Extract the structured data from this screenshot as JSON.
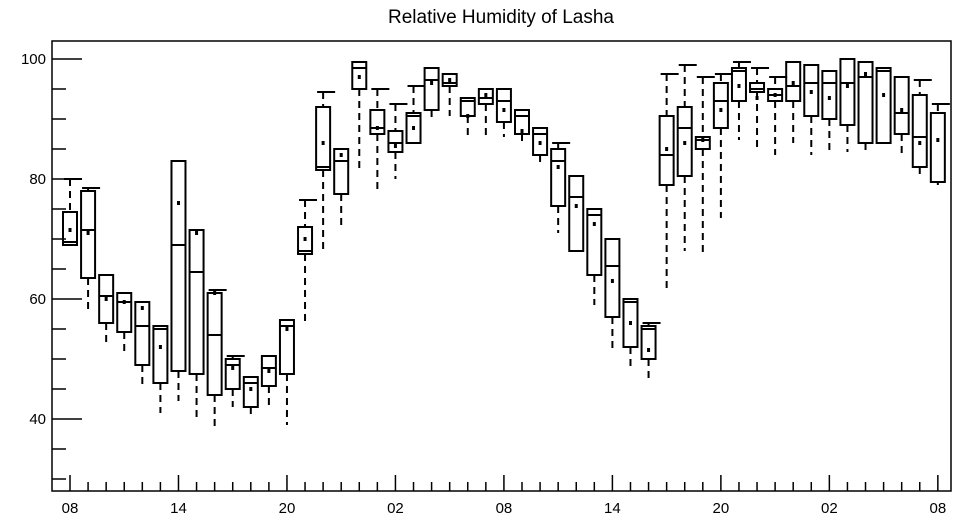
{
  "chart_data": {
    "type": "boxplot",
    "title": "Relative Humidity of Lasha",
    "xlabel": "",
    "ylabel": "",
    "ylim": [
      28,
      103
    ],
    "yticks": [
      40,
      60,
      80,
      100
    ],
    "y_minor_step": 5,
    "x_tick_labels": [
      "08",
      "14",
      "20",
      "02",
      "08",
      "14",
      "20",
      "02",
      "08"
    ],
    "x_tick_hours": [
      0,
      6,
      12,
      18,
      24,
      30,
      36,
      42,
      48
    ],
    "series": [
      {
        "hour": 0,
        "q1": 69.0,
        "median": 69.5,
        "q3": 74.5,
        "min": 69.0,
        "max": 80.0,
        "mean": 71.5
      },
      {
        "hour": 1,
        "q1": 63.5,
        "median": 71.5,
        "q3": 78.0,
        "min": 57.5,
        "max": 78.5,
        "mean": 71.0
      },
      {
        "hour": 2,
        "q1": 56.0,
        "median": 60.5,
        "q3": 64.0,
        "min": 52.0,
        "max": 64.0,
        "mean": 60.0
      },
      {
        "hour": 3,
        "q1": 54.5,
        "median": 59.5,
        "q3": 61.0,
        "min": 51.0,
        "max": 61.0,
        "mean": 59.5
      },
      {
        "hour": 4,
        "q1": 49.0,
        "median": 55.5,
        "q3": 59.5,
        "min": 45.0,
        "max": 59.5,
        "mean": 58.5
      },
      {
        "hour": 5,
        "q1": 46.0,
        "median": 55.0,
        "q3": 55.5,
        "min": 41.0,
        "max": 55.5,
        "mean": 52.0
      },
      {
        "hour": 6,
        "q1": 48.0,
        "median": 69.0,
        "q3": 83.0,
        "min": 43.0,
        "max": 83.0,
        "mean": 76.0
      },
      {
        "hour": 7,
        "q1": 47.5,
        "median": 64.5,
        "q3": 71.5,
        "min": 40.0,
        "max": 71.5,
        "mean": 71.0
      },
      {
        "hour": 8,
        "q1": 44.0,
        "median": 54.0,
        "q3": 61.0,
        "min": 38.0,
        "max": 61.5,
        "mean": 61.0
      },
      {
        "hour": 9,
        "q1": 45.0,
        "median": 49.0,
        "q3": 50.0,
        "min": 42.0,
        "max": 50.5,
        "mean": 48.5
      },
      {
        "hour": 10,
        "q1": 42.0,
        "median": 46.0,
        "q3": 47.0,
        "min": 40.0,
        "max": 47.0,
        "mean": 45.0
      },
      {
        "hour": 11,
        "q1": 45.5,
        "median": 48.5,
        "q3": 50.5,
        "min": 42.0,
        "max": 50.5,
        "mean": 48.0
      },
      {
        "hour": 12,
        "q1": 47.5,
        "median": 55.5,
        "q3": 56.5,
        "min": 39.0,
        "max": 56.5,
        "mean": 55.0
      },
      {
        "hour": 13,
        "q1": 67.5,
        "median": 68.0,
        "q3": 72.0,
        "min": 55.5,
        "max": 76.5,
        "mean": 70.0
      },
      {
        "hour": 14,
        "q1": 81.5,
        "median": 82.0,
        "q3": 92.0,
        "min": 67.5,
        "max": 94.5,
        "mean": 86.0
      },
      {
        "hour": 15,
        "q1": 77.5,
        "median": 83.0,
        "q3": 85.0,
        "min": 72.0,
        "max": 85.0,
        "mean": 84.0
      },
      {
        "hour": 16,
        "q1": 95.0,
        "median": 98.5,
        "q3": 99.5,
        "min": 81.0,
        "max": 99.5,
        "mean": 97.0
      },
      {
        "hour": 17,
        "q1": 87.5,
        "median": 88.5,
        "q3": 91.5,
        "min": 77.5,
        "max": 95.0,
        "mean": 88.5
      },
      {
        "hour": 18,
        "q1": 84.5,
        "median": 86.0,
        "q3": 88.0,
        "min": 80.0,
        "max": 92.5,
        "mean": 85.5
      },
      {
        "hour": 19,
        "q1": 86.0,
        "median": 90.5,
        "q3": 91.0,
        "min": 86.0,
        "max": 95.5,
        "mean": 88.5
      },
      {
        "hour": 20,
        "q1": 91.5,
        "median": 96.5,
        "q3": 98.5,
        "min": 90.0,
        "max": 98.5,
        "mean": 96.0
      },
      {
        "hour": 21,
        "q1": 95.5,
        "median": 96.0,
        "q3": 97.5,
        "min": 90.5,
        "max": 97.5,
        "mean": 96.5
      },
      {
        "hour": 22,
        "q1": 90.5,
        "median": 93.0,
        "q3": 93.5,
        "min": 86.5,
        "max": 93.5,
        "mean": 90.5
      },
      {
        "hour": 23,
        "q1": 92.5,
        "median": 93.5,
        "q3": 95.0,
        "min": 86.5,
        "max": 95.0,
        "mean": 94.0
      },
      {
        "hour": 24,
        "q1": 89.5,
        "median": 93.0,
        "q3": 95.0,
        "min": 87.0,
        "max": 95.0,
        "mean": 91.5
      },
      {
        "hour": 25,
        "q1": 87.5,
        "median": 90.5,
        "q3": 91.5,
        "min": 85.5,
        "max": 91.5,
        "mean": 88.0
      },
      {
        "hour": 26,
        "q1": 84.0,
        "median": 87.5,
        "q3": 88.5,
        "min": 82.0,
        "max": 88.5,
        "mean": 86.0
      },
      {
        "hour": 27,
        "q1": 75.5,
        "median": 83.0,
        "q3": 85.0,
        "min": 71.0,
        "max": 86.0,
        "mean": 82.0
      },
      {
        "hour": 28,
        "q1": 68.0,
        "median": 77.0,
        "q3": 80.5,
        "min": 68.0,
        "max": 80.5,
        "mean": 75.5
      },
      {
        "hour": 29,
        "q1": 64.0,
        "median": 74.0,
        "q3": 75.0,
        "min": 59.0,
        "max": 75.0,
        "mean": 72.5
      },
      {
        "hour": 30,
        "q1": 57.0,
        "median": 65.5,
        "q3": 70.0,
        "min": 51.0,
        "max": 70.0,
        "mean": 63.0
      },
      {
        "hour": 31,
        "q1": 52.0,
        "median": 59.5,
        "q3": 60.0,
        "min": 48.0,
        "max": 60.0,
        "mean": 56.0
      },
      {
        "hour": 32,
        "q1": 50.0,
        "median": 55.0,
        "q3": 55.5,
        "min": 46.5,
        "max": 56.0,
        "mean": 51.5
      },
      {
        "hour": 33,
        "q1": 79.0,
        "median": 84.0,
        "q3": 90.5,
        "min": 61.5,
        "max": 97.5,
        "mean": 85.0
      },
      {
        "hour": 34,
        "q1": 80.5,
        "median": 88.5,
        "q3": 92.0,
        "min": 68.0,
        "max": 99.0,
        "mean": 86.0
      },
      {
        "hour": 35,
        "q1": 85.0,
        "median": 86.5,
        "q3": 87.0,
        "min": 67.0,
        "max": 97.0,
        "mean": 86.5
      },
      {
        "hour": 36,
        "q1": 88.5,
        "median": 93.0,
        "q3": 96.0,
        "min": 73.5,
        "max": 97.5,
        "mean": 91.5
      },
      {
        "hour": 37,
        "q1": 93.0,
        "median": 98.0,
        "q3": 98.5,
        "min": 86.5,
        "max": 99.5,
        "mean": 95.5
      },
      {
        "hour": 38,
        "q1": 94.5,
        "median": 95.0,
        "q3": 96.0,
        "min": 85.0,
        "max": 98.5,
        "mean": 93.5
      },
      {
        "hour": 39,
        "q1": 93.0,
        "median": 94.0,
        "q3": 95.0,
        "min": 84.0,
        "max": 97.0,
        "mean": 94.0
      },
      {
        "hour": 40,
        "q1": 93.0,
        "median": 95.5,
        "q3": 99.5,
        "min": 86.0,
        "max": 99.5,
        "mean": 96.0
      },
      {
        "hour": 41,
        "q1": 90.5,
        "median": 96.0,
        "q3": 99.0,
        "min": 84.0,
        "max": 99.0,
        "mean": 94.5
      },
      {
        "hour": 42,
        "q1": 90.0,
        "median": 96.0,
        "q3": 98.0,
        "min": 84.0,
        "max": 98.0,
        "mean": 93.5
      },
      {
        "hour": 43,
        "q1": 89.0,
        "median": 96.0,
        "q3": 100.0,
        "min": 84.5,
        "max": 100.0,
        "mean": 95.5
      },
      {
        "hour": 44,
        "q1": 86.0,
        "median": 97.0,
        "q3": 99.5,
        "min": 84.5,
        "max": 99.5,
        "mean": 97.5
      },
      {
        "hour": 45,
        "q1": 86.0,
        "median": 98.0,
        "q3": 98.5,
        "min": 86.0,
        "max": 98.5,
        "mean": 94.0
      },
      {
        "hour": 46,
        "q1": 87.5,
        "median": 91.0,
        "q3": 97.0,
        "min": 83.5,
        "max": 97.0,
        "mean": 91.5
      },
      {
        "hour": 47,
        "q1": 82.0,
        "median": 87.0,
        "q3": 94.0,
        "min": 80.0,
        "max": 96.5,
        "mean": 86.0
      },
      {
        "hour": 48,
        "q1": 79.5,
        "median": 79.5,
        "q3": 91.0,
        "min": 79.0,
        "max": 92.5,
        "mean": 86.5
      }
    ]
  }
}
